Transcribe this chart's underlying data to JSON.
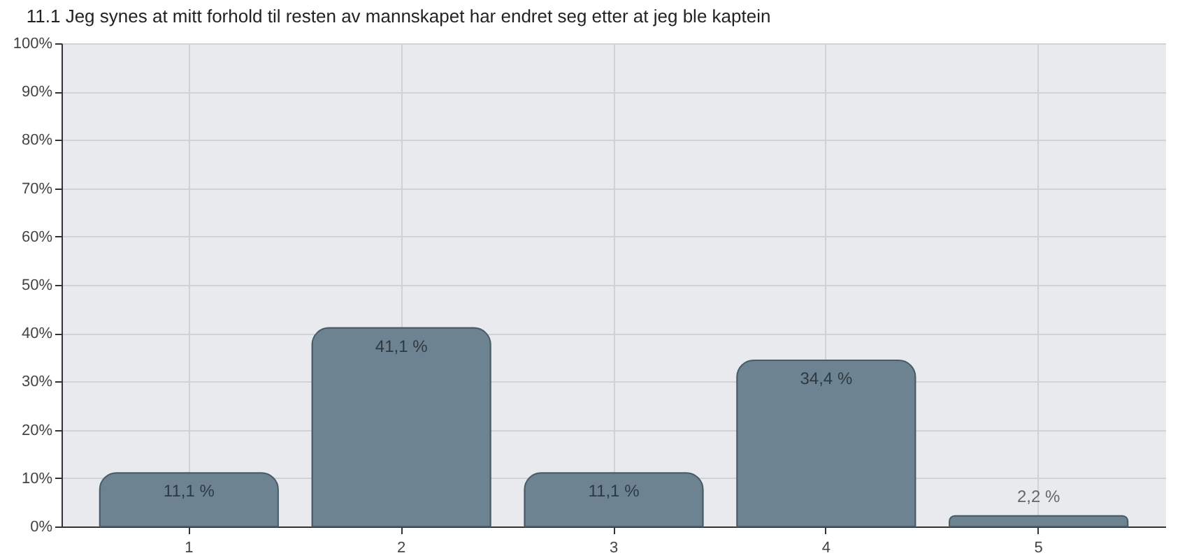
{
  "chart_data": {
    "type": "bar",
    "title": "11.1 Jeg synes at mitt forhold til resten av mannskapet har  endret seg etter at jeg ble kaptein",
    "categories": [
      "1",
      "2",
      "3",
      "4",
      "5"
    ],
    "values": [
      11.1,
      41.1,
      11.1,
      34.4,
      2.2
    ],
    "value_labels": [
      "11,1 %",
      "41,1 %",
      "11,1 %",
      "34,4 %",
      "2,2 %"
    ],
    "color": "#6d8391",
    "ylim": [
      0,
      100
    ],
    "yticks": [
      {
        "value": 0,
        "label": "0%"
      },
      {
        "value": 10,
        "label": "10%"
      },
      {
        "value": 20,
        "label": "20%"
      },
      {
        "value": 30,
        "label": "30%"
      },
      {
        "value": 40,
        "label": "40%"
      },
      {
        "value": 50,
        "label": "50%"
      },
      {
        "value": 60,
        "label": "60%"
      },
      {
        "value": 70,
        "label": "70%"
      },
      {
        "value": 80,
        "label": "80%"
      },
      {
        "value": 90,
        "label": "90%"
      },
      {
        "value": 100,
        "label": "100%"
      }
    ],
    "grid": true
  }
}
